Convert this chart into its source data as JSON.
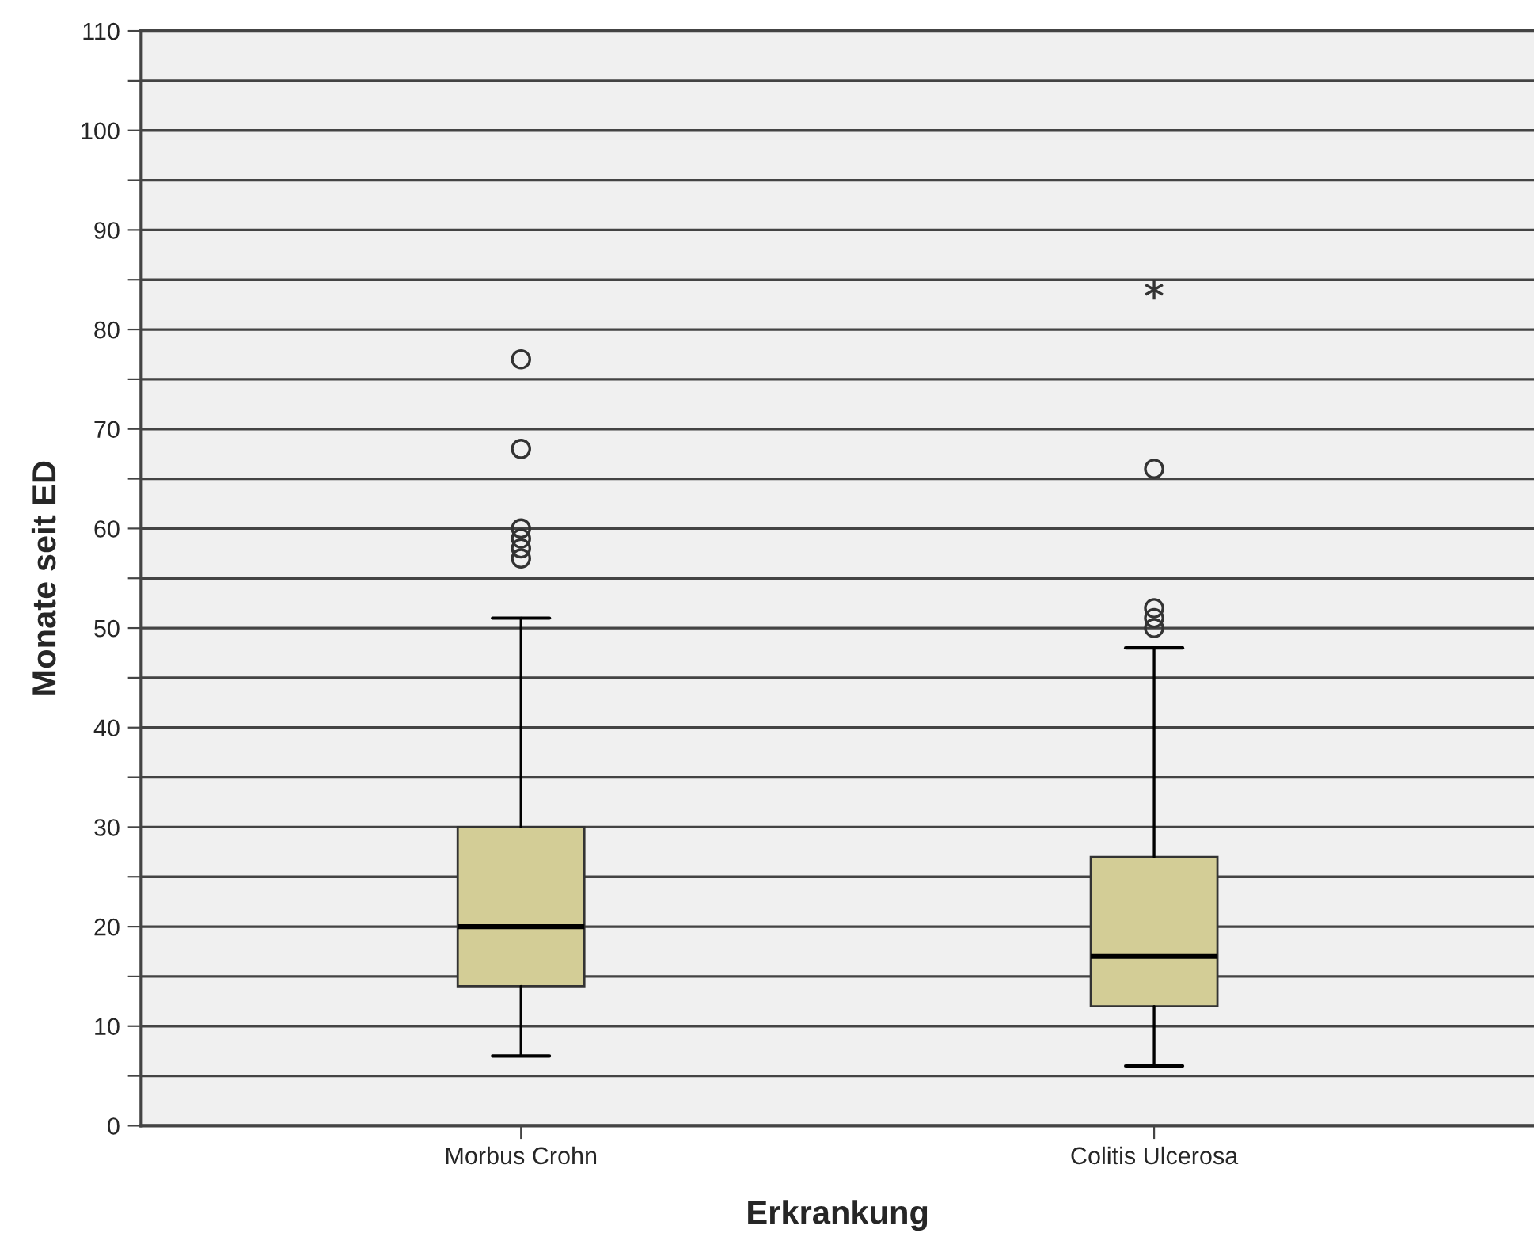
{
  "chart_data": {
    "type": "box",
    "xlabel": "Erkrankung",
    "ylabel": "Monate seit ED",
    "categories": [
      "Morbus Crohn",
      "Colitis Ulcerosa"
    ],
    "series": [
      {
        "color": "#d3cd96",
        "boxes": [
          {
            "low": 7,
            "q1": 14,
            "median": 20,
            "q3": 30,
            "high": 51,
            "outliers": [
              57,
              58,
              59,
              60,
              68,
              77
            ]
          },
          {
            "low": 6,
            "q1": 12,
            "median": 17,
            "q3": 27,
            "high": 48,
            "outliers": [
              50,
              51,
              52,
              66,
              84
            ]
          }
        ]
      }
    ],
    "ylim": [
      0,
      110
    ],
    "yticks": [
      0,
      {
        "value": 5,
        "label": null
      },
      10,
      {
        "value": 15,
        "label": null
      },
      20,
      {
        "value": 25,
        "label": null
      },
      30,
      {
        "value": 35,
        "label": null
      },
      40,
      {
        "value": 45,
        "label": null
      },
      50,
      {
        "value": 55,
        "label": null
      },
      60,
      {
        "value": 65,
        "label": null
      },
      70,
      {
        "value": 75,
        "label": null
      },
      80,
      {
        "value": 85,
        "label": null
      },
      90,
      {
        "value": 95,
        "label": null
      },
      100,
      {
        "value": 105,
        "label": null
      },
      110
    ],
    "grid": "y"
  }
}
